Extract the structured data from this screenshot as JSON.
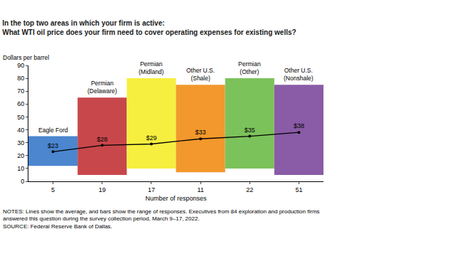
{
  "chart_data": {
    "type": "bar",
    "title": [
      "In the top two areas in which your firm is active:",
      "What WTI oil price does your firm need to cover operating expenses for existing wells?"
    ],
    "y_label": "Dollars per barrel",
    "x_label": "Number of responses",
    "notes": [
      "NOTES: Lines show the average, and bars show the range of responses. Executives from 84 exploration and production firms",
      "answered this question during the survey collection period, March 9–17, 2022."
    ],
    "source": "SOURCE: Federal Reserve Bank of Dallas.",
    "categories": [
      "Eagle Ford",
      "Permian (Delaware)",
      "Permian (Midland)",
      "Other U.S. (Shale)",
      "Permian (Other)",
      "Other U.S. (Nonshale)"
    ],
    "responses": [
      5,
      19,
      17,
      11,
      22,
      51
    ],
    "ylim": [
      0,
      90
    ],
    "yticks": [
      0,
      10,
      20,
      30,
      40,
      50,
      60,
      70,
      80,
      90
    ],
    "grid": false,
    "series": [
      {
        "type": "bar",
        "low": [
          12,
          5,
          10,
          7,
          10,
          5
        ],
        "high": [
          35,
          65,
          80,
          75,
          80,
          75
        ],
        "colors": [
          "#4b86cf",
          "#c8474b",
          "#f6ef3f",
          "#f2982c",
          "#7cc25b",
          "#8a5ba6"
        ]
      },
      {
        "type": "line",
        "values": [
          23,
          28,
          29,
          33,
          35,
          38
        ],
        "value_labels": [
          "$23",
          "$28",
          "$29",
          "$33",
          "$35",
          "$38"
        ],
        "color": "#000000",
        "marker": "circle",
        "data_labels": true
      }
    ]
  }
}
